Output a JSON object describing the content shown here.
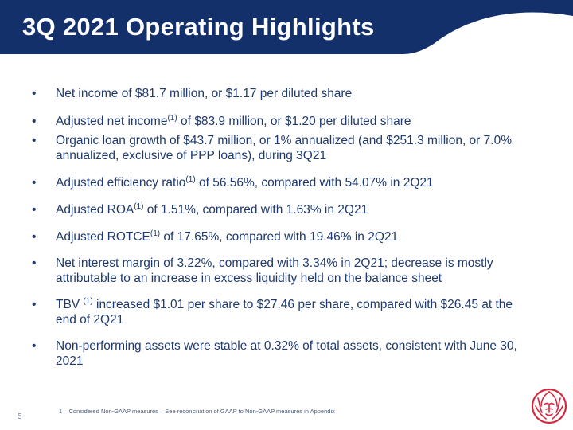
{
  "header": {
    "title": "3Q 2021 Operating Highlights",
    "band_color": "#14306b"
  },
  "bullet_glyph": "•",
  "bullets": [
    {
      "text": "Net income of $81.7 million, or $1.17 per diluted share"
    },
    {
      "pre": "Adjusted net income",
      "sup": "(1)",
      "post": " of $83.9 million, or $1.20 per diluted share"
    },
    {
      "line1": "Organic loan growth of $43.7 million, or 1% annualized (and $251.3 million, or 7.0%",
      "line2": "annualized, exclusive of PPP loans), during 3Q21"
    },
    {
      "pre": "Adjusted efficiency ratio",
      "sup": "(1)",
      "post": " of 56.56%, compared with 54.07% in 2Q21"
    },
    {
      "pre": "Adjusted ROA",
      "sup": "(1)",
      "post": " of 1.51%, compared with 1.63% in 2Q21"
    },
    {
      "pre": "Adjusted ROTCE",
      "sup": "(1)",
      "post": " of 17.65%, compared with 19.46% in 2Q21"
    },
    {
      "line1": "Net interest margin of 3.22%, compared with 3.34% in 2Q21; decrease is mostly",
      "line2": "attributable to an increase in excess liquidity held on the balance sheet"
    },
    {
      "pre": "TBV ",
      "sup": "(1)",
      "post": " increased $1.01 per share to $27.46 per share, compared with $26.45 at the",
      "line2": "end of 2Q21"
    },
    {
      "line1": "Non-performing assets were stable at 0.32% of total assets, consistent with June 30,",
      "line2": "2021"
    }
  ],
  "footnote": "1 – Considered Non-GAAP measures – See reconciliation of GAAP to Non-GAAP measures in Appendix",
  "page_number": "5",
  "logo": {
    "icon": "lion-head-icon",
    "color": "#d7263d"
  }
}
